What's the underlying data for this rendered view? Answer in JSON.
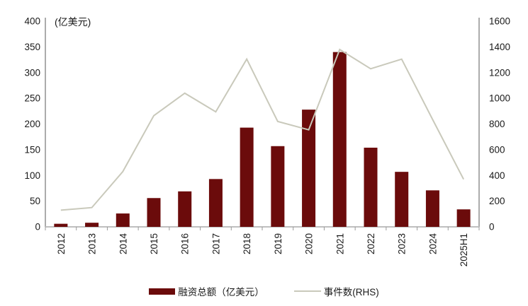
{
  "chart_data": {
    "type": "combo-bar-line",
    "unit_label": "(亿美元)",
    "categories": [
      "2012",
      "2013",
      "2014",
      "2015",
      "2016",
      "2017",
      "2018",
      "2019",
      "2020",
      "2021",
      "2022",
      "2023",
      "2024",
      "2025H1"
    ],
    "series": [
      {
        "name": "融资总额（亿美元）",
        "type": "bar",
        "axis": "left",
        "color": "#6B0B0B",
        "values": [
          6,
          8,
          26,
          56,
          69,
          93,
          193,
          157,
          228,
          340,
          154,
          107,
          71,
          34
        ]
      },
      {
        "name": "事件数(RHS)",
        "type": "line",
        "axis": "right",
        "color": "#C9C9BB",
        "values": [
          130,
          150,
          430,
          865,
          1040,
          895,
          1305,
          820,
          755,
          1380,
          1230,
          1305,
          835,
          370
        ]
      }
    ],
    "left_axis": {
      "min": 0,
      "max": 400,
      "ticks": [
        400,
        350,
        300,
        250,
        200,
        150,
        100,
        50,
        0
      ]
    },
    "right_axis": {
      "min": 0,
      "max": 1600,
      "ticks": [
        1600,
        1400,
        1200,
        1000,
        800,
        600,
        400,
        200,
        0
      ]
    },
    "legend_position": "bottom",
    "grid": false,
    "colors": {
      "axis_line": "#808080",
      "baseline": "#BFBFBF",
      "tick_mark": "#999999",
      "text": "#1a1a1a"
    }
  }
}
